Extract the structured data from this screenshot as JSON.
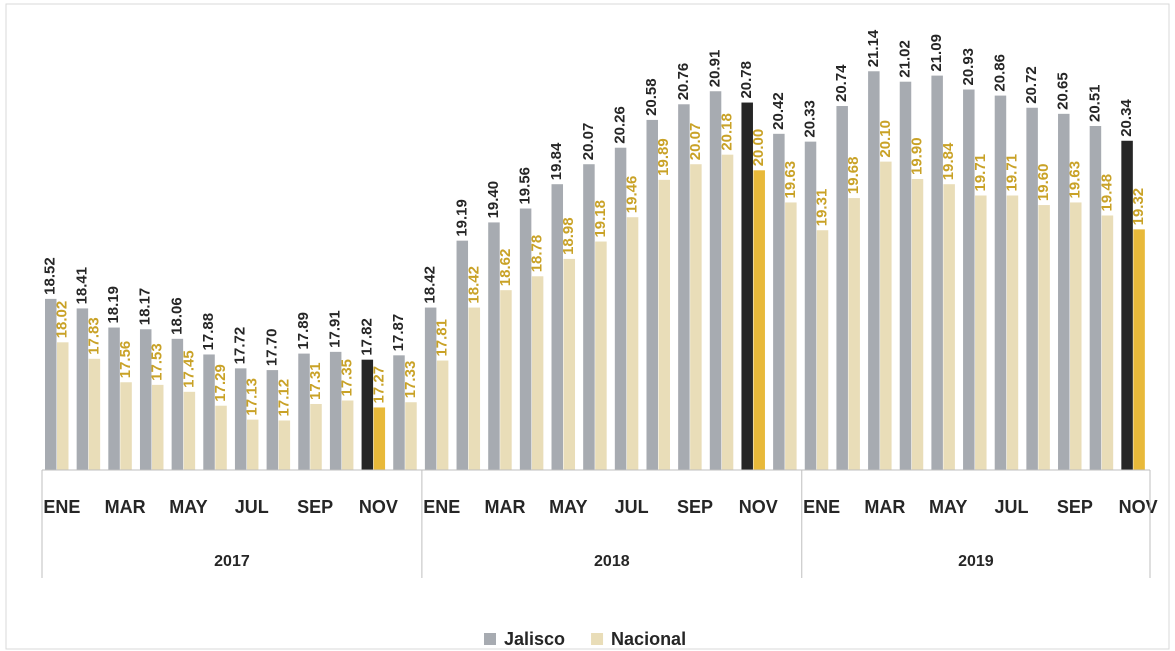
{
  "chart_data": {
    "type": "bar",
    "categories": [
      "ENE",
      null,
      "MAR",
      null,
      "MAY",
      null,
      "JUL",
      null,
      "SEP",
      null,
      "NOV",
      null,
      "ENE",
      null,
      "MAR",
      null,
      "MAY",
      null,
      "JUL",
      null,
      "SEP",
      null,
      "NOV",
      null,
      "ENE",
      null,
      "MAR",
      null,
      "MAY",
      null,
      "JUL",
      null,
      "SEP",
      null,
      "NOV"
    ],
    "years": [
      "2017",
      "2018",
      "2019"
    ],
    "highlight_category": "NOV",
    "ylim": [
      16.55,
      21.5
    ],
    "legend": "bottom",
    "series": [
      {
        "name": "Jalisco",
        "color": "#a7abb1",
        "highlight_color": "#262626",
        "label_color": "#262626",
        "values": [
          18.52,
          18.41,
          18.19,
          18.17,
          18.06,
          17.88,
          17.72,
          17.7,
          17.89,
          17.91,
          17.82,
          17.87,
          18.42,
          19.19,
          19.4,
          19.56,
          19.84,
          20.07,
          20.26,
          20.58,
          20.76,
          20.91,
          20.78,
          20.42,
          20.33,
          20.74,
          21.14,
          21.02,
          21.09,
          20.93,
          20.86,
          20.72,
          20.65,
          20.51,
          20.34
        ],
        "value_labels": [
          "18.52",
          "18.41",
          "18.19",
          "18.17",
          "18.06",
          "17.88",
          "17.72",
          "17.70",
          "17.89",
          "17.91",
          "17.82",
          "17.87",
          "18.42",
          "19.19",
          "19.40",
          "19.56",
          "19.84",
          "20.07",
          "20.26",
          "20.58",
          "20.76",
          "20.91",
          "20.78",
          "20.42",
          "20.33",
          "20.74",
          "21.14",
          "21.02",
          "21.09",
          "20.93",
          "20.86",
          "20.72",
          "20.65",
          "20.51",
          "20.34"
        ]
      },
      {
        "name": "Nacional",
        "color": "#e9ddb8",
        "highlight_color": "#e8b93a",
        "label_color": "#c9a227",
        "values": [
          18.02,
          17.83,
          17.56,
          17.53,
          17.45,
          17.29,
          17.13,
          17.12,
          17.31,
          17.35,
          17.27,
          17.33,
          17.81,
          18.42,
          18.62,
          18.78,
          18.98,
          19.18,
          19.46,
          19.89,
          20.07,
          20.18,
          20.0,
          19.63,
          19.31,
          19.68,
          20.1,
          19.9,
          19.84,
          19.71,
          19.71,
          19.6,
          19.63,
          19.48,
          19.32
        ],
        "value_labels": [
          "18.02",
          "17.83",
          "17.56",
          "17.53",
          "17.45",
          "17.29",
          "17.13",
          "17.12",
          "17.31",
          "17.35",
          "17.27",
          "17.33",
          "17.81",
          "18.42",
          "18.62",
          "18.78",
          "18.98",
          "19.18",
          "19.46",
          "19.89",
          "20.07",
          "20.18",
          "20.00",
          "19.63",
          "19.31",
          "19.68",
          "20.10",
          "19.90",
          "19.84",
          "19.71",
          "19.71",
          "19.60",
          "19.63",
          "19.48",
          "19.32"
        ]
      }
    ]
  }
}
